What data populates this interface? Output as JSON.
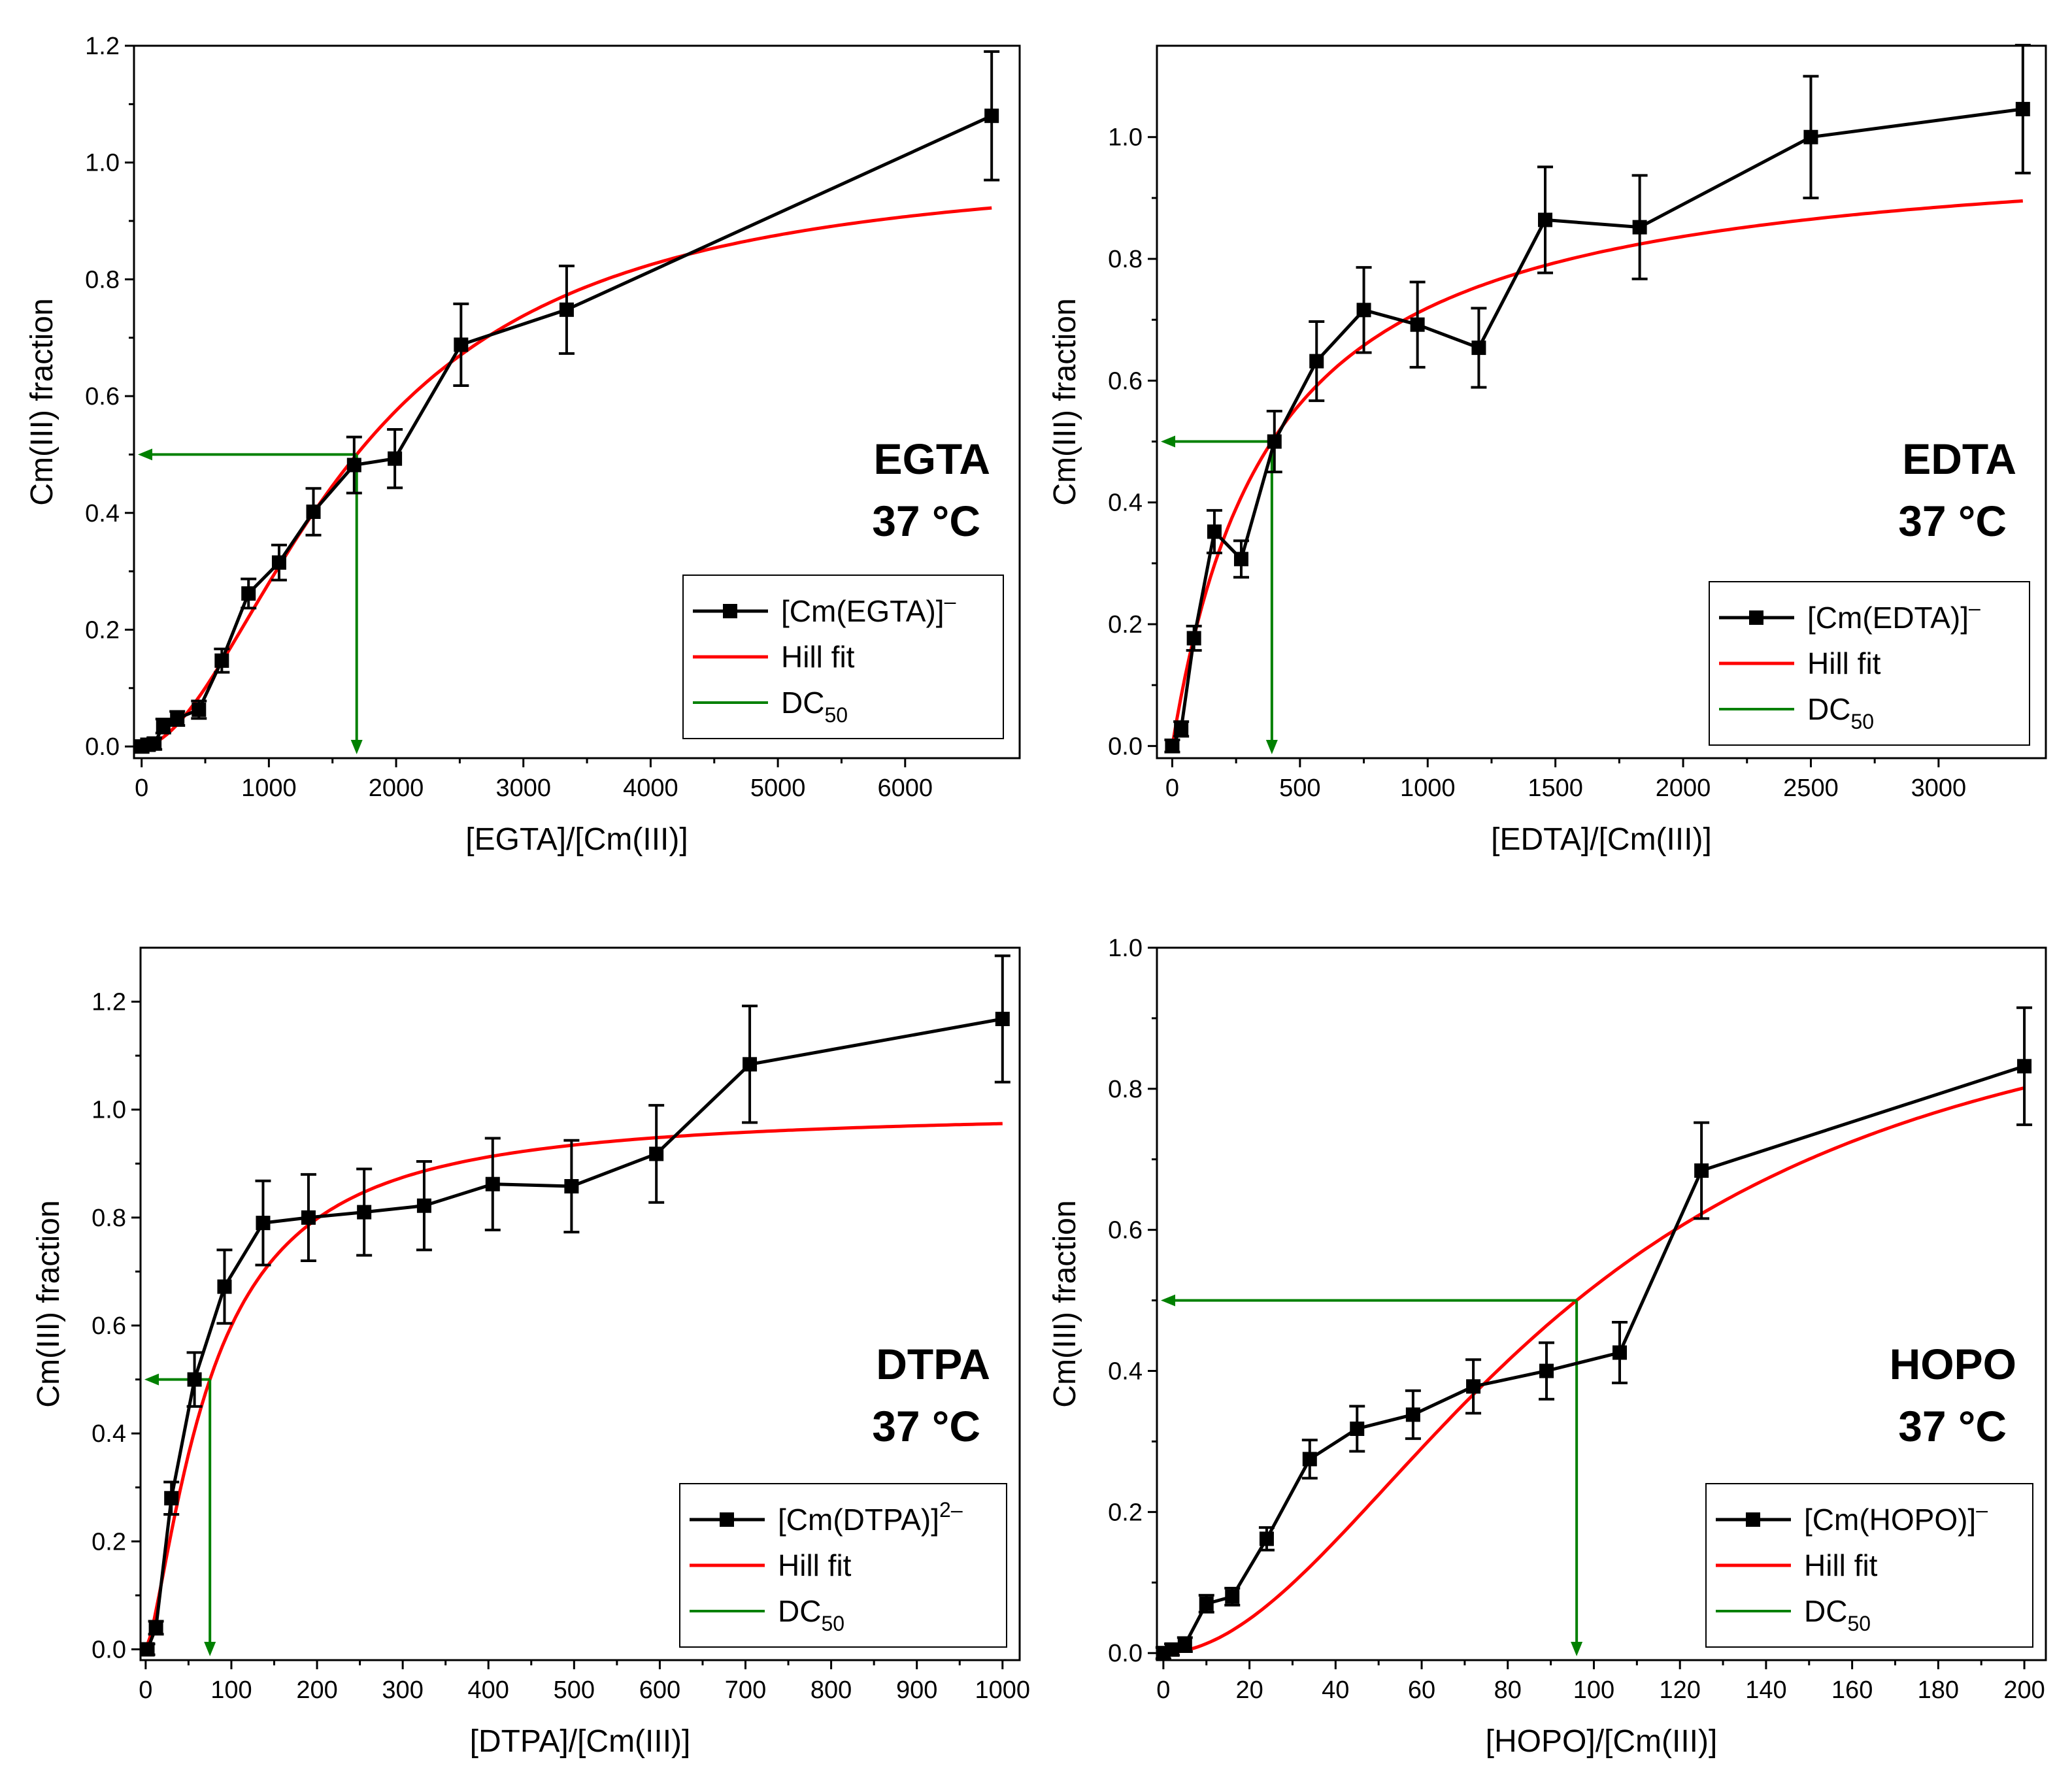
{
  "chart_data": [
    {
      "type": "line",
      "panel": "EGTA",
      "annotation": [
        "EGTA",
        "37 °C"
      ],
      "xlabel": "[EGTA]/[Cm(III)]",
      "ylabel": "Cm(III) fraction",
      "xlim": [
        -60,
        6900
      ],
      "ylim": [
        -0.02,
        1.2
      ],
      "xticks": [
        0,
        1000,
        2000,
        3000,
        4000,
        5000,
        6000
      ],
      "yticks": [
        0.0,
        0.2,
        0.4,
        0.6,
        0.8,
        1.0,
        1.2
      ],
      "ytick_labels": [
        "0.0",
        "0.2",
        "0.4",
        "0.6",
        "0.8",
        "1.0",
        "1.2"
      ],
      "legend": {
        "placement": "bottom-right",
        "items": [
          {
            "label": "[Cm(EGTA)]",
            "sup": "–"
          },
          {
            "label": "Hill fit",
            "sup": ""
          },
          {
            "label": "DC",
            "sub": "50"
          }
        ]
      },
      "series": [
        {
          "name": "[Cm(EGTA)]–",
          "x": [
            0,
            50,
            100,
            170,
            280,
            450,
            630,
            840,
            1080,
            1350,
            1670,
            1990,
            2510,
            3340,
            6680
          ],
          "y": [
            0.0,
            0.003,
            0.005,
            0.035,
            0.048,
            0.063,
            0.147,
            0.262,
            0.315,
            0.402,
            0.482,
            0.493,
            0.688,
            0.748,
            1.08
          ],
          "err": [
            0.01,
            0.01,
            0.01,
            0.012,
            0.012,
            0.015,
            0.02,
            0.025,
            0.03,
            0.04,
            0.048,
            0.05,
            0.07,
            0.075,
            0.11
          ]
        }
      ],
      "hill_fit": {
        "dc50": 1690,
        "n": 1.8,
        "x_max": 6680
      },
      "dc50": {
        "x": 1690,
        "y": 0.5
      }
    },
    {
      "type": "line",
      "panel": "EDTA",
      "annotation": [
        "EDTA",
        "37 °C"
      ],
      "xlabel": "[EDTA]/[Cm(III)]",
      "ylabel": "Cm(III) fraction",
      "xlim": [
        -60,
        3420
      ],
      "ylim": [
        -0.02,
        1.15
      ],
      "xticks": [
        0,
        500,
        1000,
        1500,
        2000,
        2500,
        3000
      ],
      "yticks": [
        0.0,
        0.2,
        0.4,
        0.6,
        0.8,
        1.0
      ],
      "ytick_labels": [
        "0.0",
        "0.2",
        "0.4",
        "0.6",
        "0.8",
        "1.0"
      ],
      "legend": {
        "placement": "bottom-right",
        "items": [
          {
            "label": "[Cm(EDTA)]",
            "sup": "–"
          },
          {
            "label": "Hill fit",
            "sup": ""
          },
          {
            "label": "DC",
            "sub": "50"
          }
        ]
      },
      "series": [
        {
          "name": "[Cm(EDTA)]–",
          "x": [
            0,
            35,
            85,
            165,
            270,
            400,
            565,
            750,
            960,
            1200,
            1460,
            1830,
            2500,
            3330
          ],
          "y": [
            0.0,
            0.028,
            0.177,
            0.352,
            0.307,
            0.5,
            0.632,
            0.716,
            0.692,
            0.654,
            0.864,
            0.852,
            1.0,
            1.046
          ],
          "err": [
            0.01,
            0.012,
            0.02,
            0.035,
            0.03,
            0.05,
            0.065,
            0.07,
            0.07,
            0.065,
            0.087,
            0.085,
            0.1,
            0.105
          ]
        }
      ],
      "hill_fit": {
        "dc50": 390,
        "n": 1.0,
        "x_max": 3330
      },
      "dc50": {
        "x": 390,
        "y": 0.5
      }
    },
    {
      "type": "line",
      "panel": "DTPA",
      "annotation": [
        "DTPA",
        "37 °C"
      ],
      "xlabel": "[DTPA]/[Cm(III)]",
      "ylabel": "Cm(III) fraction",
      "xlim": [
        -6,
        1020
      ],
      "ylim": [
        -0.02,
        1.3
      ],
      "xticks": [
        0,
        100,
        200,
        300,
        400,
        500,
        600,
        700,
        800,
        900,
        1000
      ],
      "yticks": [
        0.0,
        0.2,
        0.4,
        0.6,
        0.8,
        1.0,
        1.2
      ],
      "ytick_labels": [
        "0.0",
        "0.2",
        "0.4",
        "0.6",
        "0.8",
        "1.0",
        "1.2"
      ],
      "legend": {
        "placement": "bottom-right",
        "items": [
          {
            "label": "[Cm(DTPA)]",
            "sup": "2–"
          },
          {
            "label": "Hill fit",
            "sup": ""
          },
          {
            "label": "DC",
            "sub": "50"
          }
        ]
      },
      "series": [
        {
          "name": "[Cm(DTPA)]2–",
          "x": [
            2,
            12,
            30,
            57,
            92,
            137,
            190,
            255,
            325,
            405,
            497,
            596,
            705,
            1000
          ],
          "y": [
            0.0,
            0.04,
            0.28,
            0.5,
            0.672,
            0.79,
            0.8,
            0.81,
            0.822,
            0.862,
            0.858,
            0.918,
            1.084,
            1.168
          ],
          "err": [
            0.01,
            0.012,
            0.03,
            0.05,
            0.068,
            0.078,
            0.08,
            0.08,
            0.082,
            0.085,
            0.085,
            0.09,
            0.108,
            0.117
          ]
        }
      ],
      "hill_fit": {
        "dc50": 75,
        "n": 1.4,
        "x_max": 1000
      },
      "dc50": {
        "x": 75,
        "y": 0.5
      }
    },
    {
      "type": "line",
      "panel": "HOPO",
      "annotation": [
        "HOPO",
        "37 °C"
      ],
      "xlabel": "[HOPO]/[Cm(III)]",
      "ylabel": "Cm(III) fraction",
      "xlim": [
        -1.5,
        205
      ],
      "ylim": [
        -0.01,
        1.0
      ],
      "xticks": [
        0,
        20,
        40,
        60,
        80,
        100,
        120,
        140,
        160,
        180,
        200
      ],
      "yticks": [
        0.0,
        0.2,
        0.4,
        0.6,
        0.8,
        1.0
      ],
      "ytick_labels": [
        "0.0",
        "0.2",
        "0.4",
        "0.6",
        "0.8",
        "1.0"
      ],
      "legend": {
        "placement": "bottom-right",
        "items": [
          {
            "label": "[Cm(HOPO)]",
            "sup": "–"
          },
          {
            "label": "Hill fit",
            "sup": ""
          },
          {
            "label": "DC",
            "sub": "50"
          }
        ]
      },
      "series": [
        {
          "name": "[Cm(HOPO)]–",
          "x": [
            0,
            2,
            5,
            10,
            16,
            24,
            34,
            45,
            58,
            72,
            89,
            106,
            125,
            200
          ],
          "y": [
            0.0,
            0.005,
            0.012,
            0.07,
            0.08,
            0.162,
            0.275,
            0.318,
            0.338,
            0.378,
            0.4,
            0.426,
            0.684,
            0.832
          ],
          "err": [
            0.008,
            0.008,
            0.01,
            0.012,
            0.012,
            0.016,
            0.027,
            0.032,
            0.034,
            0.038,
            0.04,
            0.043,
            0.068,
            0.083
          ]
        }
      ],
      "hill_fit": {
        "dc50": 96,
        "n": 1.9,
        "x_max": 200
      },
      "dc50": {
        "x": 96,
        "y": 0.5
      }
    }
  ]
}
